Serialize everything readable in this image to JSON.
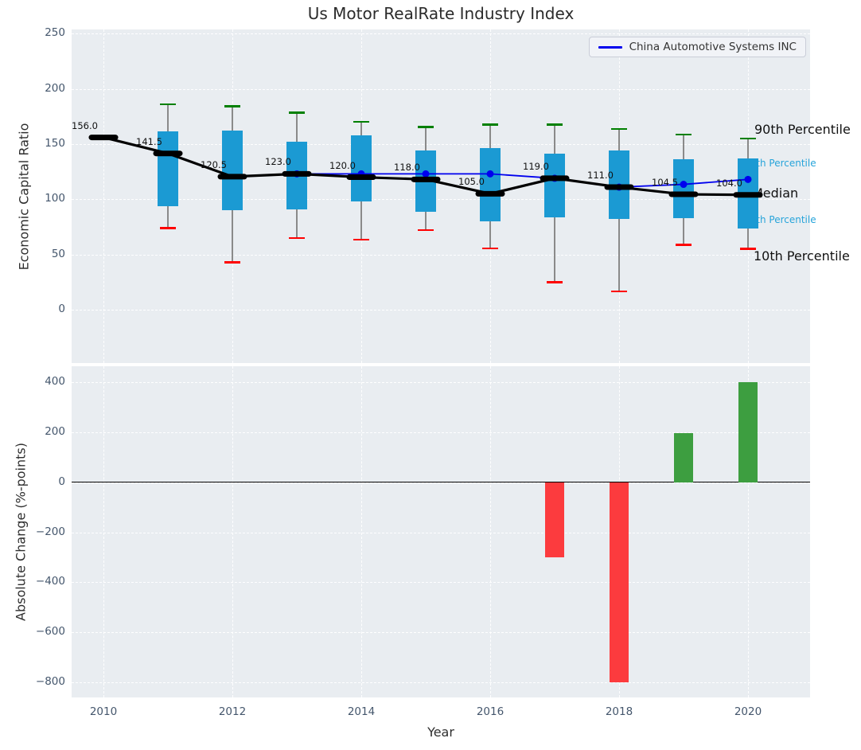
{
  "title": "Us Motor RealRate Industry Index",
  "xlabel": "Year",
  "legend": {
    "label": "China Automotive Systems INC"
  },
  "colors": {
    "plot_bg": "#e9edf1",
    "grid": "#ffffff",
    "box_fill": "#1b9ad3",
    "whisker": "#8a8a8a",
    "cap_90th": "#008000",
    "cap_10th": "#ff0000",
    "median_line": "#000000",
    "company_line": "#0000ee",
    "bar_positive": "#3d9e40",
    "bar_negative": "#fc3b3e",
    "tick_text": "#44566c",
    "annotation_large": "#111111",
    "annotation_small": "#27a4da"
  },
  "chart_data": [
    {
      "type": "boxplot",
      "title": "Us Motor RealRate Industry Index",
      "ylabel": "Economic Capital Ratio",
      "ylim": [
        -48,
        253
      ],
      "yticks": [
        0,
        50,
        100,
        150,
        200,
        250
      ],
      "grid": true,
      "legend_position": "upper right",
      "years": [
        2010,
        2011,
        2012,
        2013,
        2014,
        2015,
        2016,
        2017,
        2018,
        2019,
        2020
      ],
      "series": [
        {
          "name": "90th Percentile",
          "values": [
            null,
            186,
            184,
            178.5,
            170,
            165.5,
            167.5,
            167.5,
            163.5,
            158.5,
            155
          ]
        },
        {
          "name": "75th Percentile",
          "values": [
            null,
            161.5,
            162.5,
            152,
            157.5,
            144.5,
            146,
            141,
            144.5,
            136,
            137
          ]
        },
        {
          "name": "Median",
          "values": [
            156.0,
            141.5,
            120.5,
            123.0,
            120.0,
            118.0,
            105.0,
            119.0,
            111.0,
            104.5,
            104.0
          ]
        },
        {
          "name": "25th Percentile",
          "values": [
            null,
            94,
            90,
            90.5,
            98,
            89,
            80,
            84,
            82,
            83,
            73.5
          ]
        },
        {
          "name": "10th Percentile",
          "values": [
            null,
            74,
            43,
            65,
            63.5,
            72,
            55.5,
            25,
            16.5,
            59,
            55
          ]
        }
      ],
      "median_labels": [
        "156.0",
        "141.5",
        "120.5",
        "123.0",
        "120.0",
        "118.0",
        "105.0",
        "119.0",
        "111.0",
        "104.5",
        "104.0"
      ],
      "company_line": {
        "name": "China Automotive Systems INC",
        "years": [
          2013,
          2014,
          2015,
          2016,
          2017,
          2018,
          2019,
          2020
        ],
        "values": [
          123,
          123,
          123,
          123,
          119,
          111,
          113.5,
          118
        ]
      },
      "right_annotations": [
        "90th Percentile",
        "75th Percentile",
        "Median",
        "25th Percentile",
        "10th Percentile"
      ]
    },
    {
      "type": "bar",
      "ylabel": "Absolute Change (%-points)",
      "ylim": [
        -856,
        462
      ],
      "yticks": [
        400,
        200,
        0,
        -200,
        -400,
        -600,
        -800
      ],
      "grid": true,
      "xticks": [
        2010,
        2012,
        2014,
        2016,
        2018,
        2020
      ],
      "categories": [
        2017,
        2018,
        2019,
        2020
      ],
      "values": [
        -300,
        -800,
        195,
        400
      ]
    }
  ]
}
